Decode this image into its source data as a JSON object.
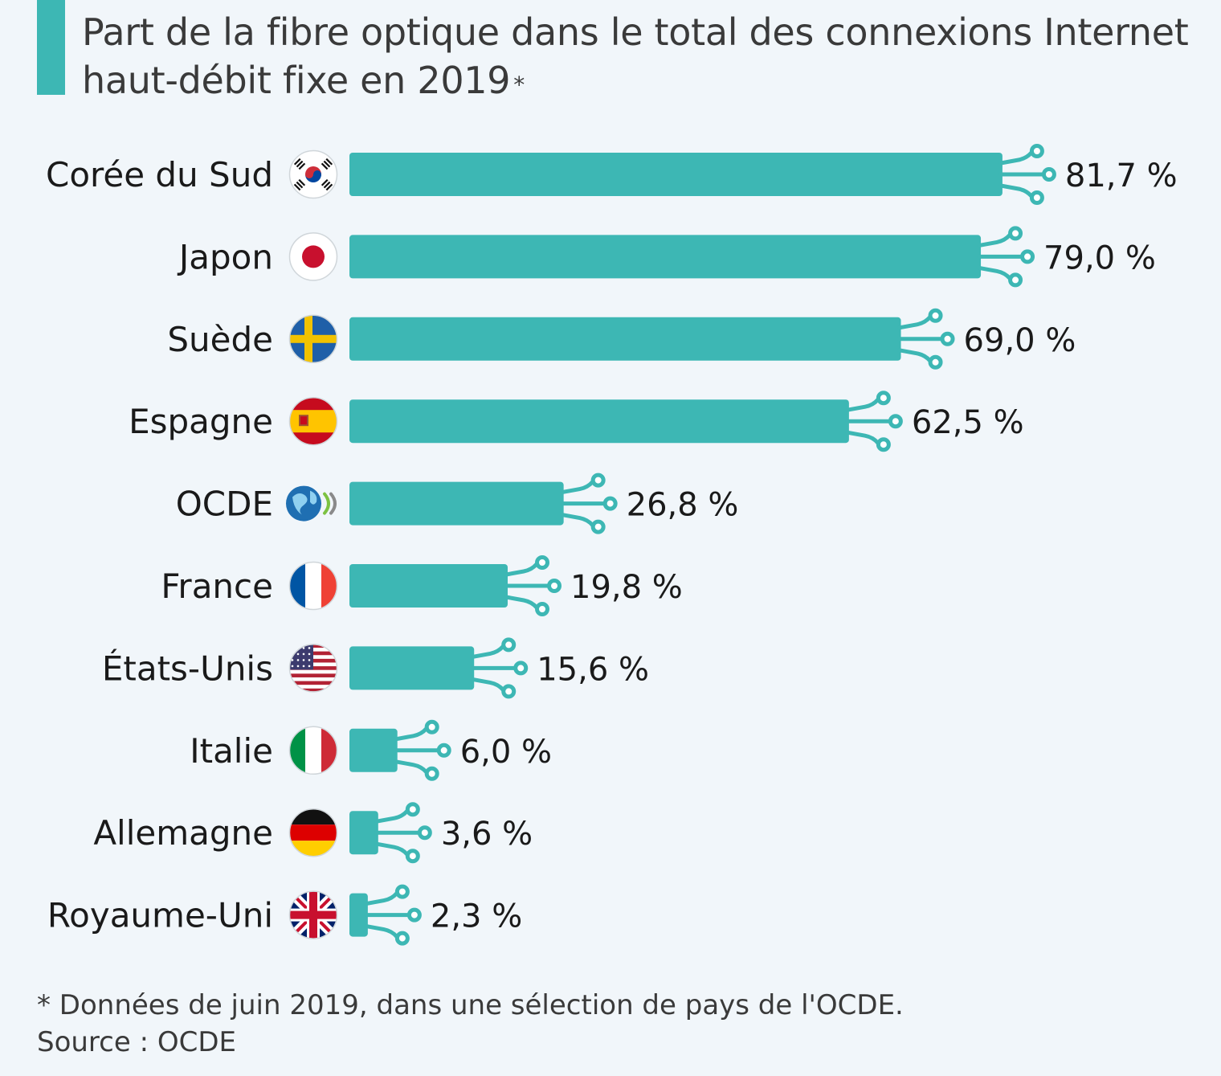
{
  "title": "Part de la fibre optique dans le total des connexions Internet haut-débit fixe en 2019",
  "title_marker": "*",
  "footnote": "* Données de juin 2019, dans une sélection de pays de l'OCDE.",
  "source": "Source : OCDE",
  "colors": {
    "bar": "#3db7b4",
    "accent": "#3db7b4",
    "background": "#f1f6fa"
  },
  "chart_data": {
    "type": "bar",
    "orientation": "horizontal",
    "title": "Part de la fibre optique dans le total des connexions Internet haut-débit fixe en 2019",
    "categories": [
      "Corée du Sud",
      "Japon",
      "Suède",
      "Espagne",
      "OCDE",
      "France",
      "États-Unis",
      "Italie",
      "Allemagne",
      "Royaume-Uni"
    ],
    "values": [
      81.7,
      79.0,
      69.0,
      62.5,
      26.8,
      19.8,
      15.6,
      6.0,
      3.6,
      2.3
    ],
    "labels": [
      "81,7 %",
      "79,0 %",
      "69,0 %",
      "62,5 %",
      "26,8 %",
      "19,8 %",
      "15,6 %",
      "6,0 %",
      "3,6 %",
      "2,3 %"
    ],
    "flags": [
      "south-korea-flag",
      "japan-flag",
      "sweden-flag",
      "spain-flag",
      "oecd-logo",
      "france-flag",
      "usa-flag",
      "italy-flag",
      "germany-flag",
      "uk-flag"
    ],
    "unit": "%",
    "xlim": [
      0,
      100
    ],
    "grid": false
  }
}
